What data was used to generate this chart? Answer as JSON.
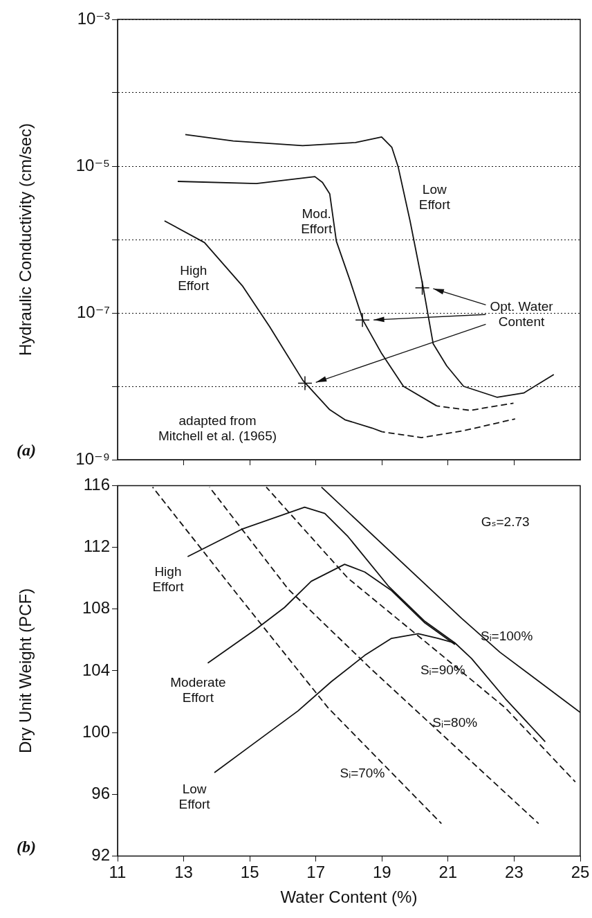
{
  "chart_data": [
    {
      "type": "line",
      "ylabel": "Hydraulic Conductivity (cm/sec)",
      "log": true,
      "grid": "y",
      "tick_labels": "y",
      "xlim": [
        11,
        25
      ],
      "xticks": [
        13,
        15,
        17,
        19,
        21,
        23
      ],
      "ylim": [
        1e-09,
        0.001
      ],
      "yticks": [
        {
          "value": 1e-09,
          "label": "10⁻⁹"
        },
        {
          "value": 1e-08,
          "label": null
        },
        {
          "value": 1e-07,
          "label": "10⁻⁷"
        },
        {
          "value": 1e-06,
          "label": null
        },
        {
          "value": 1e-05,
          "label": "10⁻⁵"
        },
        {
          "value": 0.0001,
          "label": null
        },
        {
          "value": 0.001,
          "label": "10⁻³"
        }
      ],
      "series": [
        {
          "name": "Low\nEffort",
          "color": "#111111",
          "line_style": "solid",
          "x": [
            13.05,
            14.5,
            16.6,
            18.2,
            18.99,
            19.3,
            19.49,
            19.85,
            20.25,
            20.55,
            20.96,
            21.47,
            22.48,
            23.29,
            24.2
          ],
          "values": [
            2.7e-05,
            2.2e-05,
            1.9e-05,
            2.1e-05,
            2.5e-05,
            1.8e-05,
            9.8e-06,
            1.8e-06,
            2.2e-07,
            3.8e-08,
            1.9e-08,
            1e-08,
            7.1e-09,
            8.1e-09,
            1.45e-08
          ]
        },
        {
          "name": "Mod.\nEffort",
          "color": "#111111",
          "line_style": "solid",
          "x": [
            12.82,
            15.2,
            16.97,
            17.2,
            17.42,
            17.62,
            18.03,
            18.43,
            18.99,
            19.65,
            20.66
          ],
          "values": [
            6.2e-06,
            5.8e-06,
            7.2e-06,
            6e-06,
            4.2e-06,
            9.5e-07,
            2.8e-07,
            7.9e-08,
            2.8e-08,
            1e-08,
            5.4e-09
          ]
        },
        {
          "color": "#111111",
          "line_style": "dashed",
          "x": [
            20.66,
            21.67,
            22.98
          ],
          "values": [
            5.4e-09,
            4.7e-09,
            5.9e-09
          ]
        },
        {
          "name": "High\nEffort",
          "color": "#111111",
          "line_style": "solid",
          "x": [
            12.42,
            13.63,
            14.79,
            15.6,
            16.61,
            17.42,
            17.88,
            18.7,
            19
          ],
          "values": [
            1.8e-06,
            9.1e-07,
            2.3e-07,
            6.5e-08,
            1.2e-08,
            4.8e-09,
            3.5e-09,
            2.7e-09,
            2.4e-09
          ]
        },
        {
          "color": "#111111",
          "line_style": "dashed",
          "x": [
            19,
            20.2,
            21.5,
            23.03
          ],
          "values": [
            2.4e-09,
            2e-09,
            2.5e-09,
            3.6e-09
          ]
        },
        {
          "type": "scatter",
          "name": "Opt. Water\nContent",
          "color": "#111111",
          "marker": "cross",
          "x": [
            16.67,
            18.41,
            20.22
          ],
          "values": [
            1.1e-08,
            8e-08,
            2.2e-07
          ]
        }
      ],
      "annotations": [
        "(a)",
        "adapted from\nMitchell et al. (1965)"
      ]
    },
    {
      "type": "line",
      "xlabel": "Water Content (%)",
      "ylabel": "Dry Unit Weight (PCF)",
      "xlim": [
        11,
        25
      ],
      "xticks": [
        11,
        13,
        15,
        17,
        19,
        21,
        23,
        25
      ],
      "ylim": [
        92,
        116
      ],
      "yticks": [
        92,
        96,
        100,
        104,
        108,
        112,
        116
      ],
      "series": [
        {
          "name": "High\nEffort",
          "color": "#111111",
          "line_style": "solid",
          "x": [
            13.12,
            14.79,
            16.66,
            17.27,
            17.97,
            19.19,
            20.3,
            21.21,
            21.71,
            22.73,
            23.94
          ],
          "values": [
            111.4,
            113.2,
            114.6,
            114.2,
            112.7,
            109.5,
            107.2,
            105.8,
            104.8,
            102.2,
            99.4
          ]
        },
        {
          "name": "Moderate\nEffort",
          "color": "#111111",
          "line_style": "solid",
          "x": [
            13.73,
            15.19,
            16.05,
            16.86,
            17.87,
            18.48,
            19.29,
            20.3,
            21.21
          ],
          "values": [
            104.5,
            106.7,
            108.1,
            109.8,
            110.9,
            110.4,
            109.2,
            107.1,
            105.7
          ]
        },
        {
          "name": "Low\nEffort",
          "color": "#111111",
          "line_style": "solid",
          "x": [
            13.93,
            14.94,
            16.46,
            17.47,
            18.48,
            19.29,
            20.1,
            20.7,
            21.21
          ],
          "values": [
            97.4,
            99,
            101.4,
            103.3,
            105,
            106.1,
            106.4,
            106.1,
            105.8
          ]
        },
        {
          "name": "Sᵢ=100%",
          "color": "#111111",
          "line_style": "solid",
          "x": [
            17.17,
            21.41,
            22.57,
            25
          ],
          "values": [
            115.9,
            107.4,
            105.2,
            101.3
          ]
        },
        {
          "name": "Sᵢ=90%",
          "color": "#111111",
          "line_style": "dashed",
          "x": [
            15.5,
            17.97,
            20.7,
            22.73,
            24.85
          ],
          "values": [
            115.9,
            110,
            105.2,
            101.6,
            96.8
          ]
        },
        {
          "name": "Sᵢ=80%",
          "color": "#111111",
          "line_style": "dashed",
          "x": [
            13.78,
            16.16,
            18.68,
            23.74
          ],
          "values": [
            115.9,
            109.3,
            104.1,
            94.1
          ]
        },
        {
          "name": "Sᵢ=70%",
          "color": "#111111",
          "line_style": "dashed",
          "x": [
            12.06,
            14.64,
            17.37,
            20.8
          ],
          "values": [
            115.9,
            108.9,
            101.6,
            94.1
          ]
        }
      ],
      "annotations": [
        "(b)",
        "Gₛ=2.73"
      ]
    }
  ]
}
